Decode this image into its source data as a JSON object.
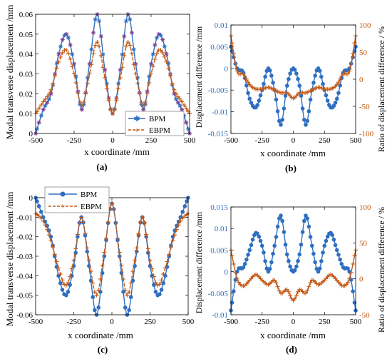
{
  "colors": {
    "bpm": "#2f6fc1",
    "ebpm": "#c35a17",
    "diff": "#2f6fc1",
    "ratio": "#c35a17",
    "green": "#78a845",
    "purple": "#7e3f96"
  },
  "chart_data": [
    {
      "panel_label": "(a)",
      "type": "line",
      "xlabel": "x coordinate /mm",
      "ylabel": "Modal transverse displacement  /mm",
      "xlim": [
        -500,
        500
      ],
      "ylim": [
        0,
        0.06
      ],
      "xticks": [
        -500,
        -250,
        0,
        250,
        500
      ],
      "yticks": [
        0,
        0.01,
        0.02,
        0.03,
        0.04,
        0.05,
        0.06
      ],
      "ytick_labels": [
        "0",
        "0.01",
        "0.02",
        "0.03",
        "0.04",
        "0.05",
        "0.06"
      ],
      "legend": "bottom-right",
      "series": [
        {
          "name": "BPM",
          "x": [
            -500,
            -450,
            -400,
            -350,
            -300,
            -250,
            -200,
            -150,
            -100,
            -50,
            0,
            50,
            100,
            150,
            200,
            250,
            300,
            350,
            400,
            450,
            500
          ],
          "y": [
            0,
            0.012,
            0.02,
            0.04,
            0.05,
            0.035,
            0.012,
            0.035,
            0.06,
            0.032,
            0.01,
            0.032,
            0.06,
            0.035,
            0.012,
            0.035,
            0.05,
            0.04,
            0.02,
            0.012,
            0
          ]
        },
        {
          "name": "EBPM",
          "x": [
            -500,
            -450,
            -400,
            -350,
            -300,
            -250,
            -200,
            -150,
            -100,
            -50,
            0,
            50,
            100,
            150,
            200,
            250,
            300,
            350,
            400,
            450,
            500
          ],
          "y": [
            0.01,
            0.016,
            0.022,
            0.036,
            0.042,
            0.03,
            0.014,
            0.03,
            0.046,
            0.028,
            0.01,
            0.028,
            0.046,
            0.03,
            0.014,
            0.03,
            0.042,
            0.036,
            0.022,
            0.016,
            0.01
          ]
        }
      ]
    },
    {
      "panel_label": "(b)",
      "type": "line",
      "xlabel": "x coordinate /mm",
      "ylabel": "Displacement difference /mm",
      "ylabel_right": "Ratio of displacement difference / %",
      "xlim": [
        -500,
        500
      ],
      "ylim": [
        -0.015,
        0.01
      ],
      "ylim_right": [
        -100,
        100
      ],
      "xticks": [
        -500,
        -250,
        0,
        250,
        500
      ],
      "yticks": [
        -0.015,
        -0.01,
        -0.005,
        0,
        0.005,
        0.01
      ],
      "ytick_labels": [
        "-0.015",
        "-0.01",
        "-0.005",
        "0",
        "0.005",
        "0.01"
      ],
      "yticks_right": [
        -100,
        -50,
        0,
        50,
        100
      ],
      "series": [
        {
          "x": [
            -500,
            -450,
            -400,
            -350,
            -300,
            -250,
            -200,
            -150,
            -100,
            -50,
            0,
            50,
            100,
            150,
            200,
            250,
            300,
            350,
            400,
            450,
            500
          ],
          "y": [
            0.005,
            0.0,
            -0.001,
            -0.007,
            -0.009,
            -0.005,
            0.0,
            -0.005,
            -0.013,
            -0.004,
            0.0,
            -0.004,
            -0.013,
            -0.005,
            0.0,
            -0.005,
            -0.009,
            -0.007,
            -0.001,
            0.0,
            0.005
          ]
        },
        {
          "axis": "right",
          "x": [
            -500,
            -450,
            -400,
            -350,
            -300,
            -250,
            -200,
            -150,
            -100,
            -50,
            0,
            50,
            100,
            150,
            200,
            250,
            300,
            350,
            400,
            450,
            500
          ],
          "y": [
            80,
            15,
            10,
            -10,
            -18,
            -18,
            -15,
            -20,
            -25,
            -25,
            -35,
            -25,
            -25,
            -20,
            -15,
            -18,
            -18,
            -10,
            10,
            15,
            80
          ]
        }
      ]
    },
    {
      "panel_label": "(c)",
      "type": "line",
      "xlabel": "x coordinate /mm",
      "ylabel": "Modal transverse displacement  /mm",
      "xlim": [
        -500,
        500
      ],
      "ylim": [
        -0.06,
        0
      ],
      "xticks": [
        -500,
        -250,
        0,
        250,
        500
      ],
      "yticks": [
        -0.06,
        -0.05,
        -0.04,
        -0.03,
        -0.02,
        -0.01,
        0
      ],
      "ytick_labels": [
        "-0.06",
        "-0.05",
        "-0.04",
        "-0.03",
        "-0.02",
        "-0.01",
        "0"
      ],
      "legend": "top-left",
      "series": [
        {
          "name": "BPM",
          "x": [
            -500,
            -450,
            -400,
            -350,
            -300,
            -250,
            -200,
            -150,
            -100,
            -50,
            0,
            50,
            100,
            150,
            200,
            250,
            300,
            350,
            400,
            450,
            500
          ],
          "y": [
            0,
            -0.01,
            -0.02,
            -0.04,
            -0.05,
            -0.035,
            -0.01,
            -0.035,
            -0.06,
            -0.03,
            -0.003,
            -0.03,
            -0.06,
            -0.035,
            -0.01,
            -0.035,
            -0.05,
            -0.04,
            -0.02,
            -0.01,
            0
          ]
        },
        {
          "name": "EBPM",
          "x": [
            -500,
            -450,
            -400,
            -350,
            -300,
            -250,
            -200,
            -150,
            -100,
            -50,
            0,
            50,
            100,
            150,
            200,
            250,
            300,
            350,
            400,
            450,
            500
          ],
          "y": [
            -0.008,
            -0.012,
            -0.022,
            -0.036,
            -0.045,
            -0.032,
            -0.01,
            -0.032,
            -0.05,
            -0.028,
            -0.003,
            -0.028,
            -0.05,
            -0.032,
            -0.01,
            -0.032,
            -0.045,
            -0.036,
            -0.022,
            -0.012,
            -0.008
          ]
        }
      ]
    },
    {
      "panel_label": "(d)",
      "type": "line",
      "xlabel": "x coordinate /mm",
      "ylabel": "Displacement difference /mm",
      "ylabel_right": "Ratio of displacement difference / %",
      "xlim": [
        -500,
        500
      ],
      "ylim": [
        -0.01,
        0.015
      ],
      "ylim_right": [
        -50,
        100
      ],
      "xticks": [
        -500,
        -250,
        0,
        250,
        500
      ],
      "yticks": [
        -0.01,
        -0.005,
        0,
        0.005,
        0.01,
        0.015
      ],
      "ytick_labels": [
        "-0.01",
        "-0.005",
        "0",
        "0.005",
        "0.01",
        "0.015"
      ],
      "yticks_right": [
        -50,
        0,
        50,
        100
      ],
      "series": [
        {
          "x": [
            -500,
            -450,
            -400,
            -350,
            -300,
            -250,
            -200,
            -150,
            -100,
            -50,
            0,
            50,
            100,
            150,
            200,
            250,
            300,
            350,
            400,
            450,
            500
          ],
          "y": [
            -0.009,
            0.0,
            0.001,
            0.005,
            0.009,
            0.006,
            0.0,
            0.006,
            0.013,
            0.004,
            0.0,
            0.004,
            0.013,
            0.006,
            0.0,
            0.006,
            0.009,
            0.005,
            0.001,
            0.0,
            -0.009
          ]
        },
        {
          "axis": "right",
          "x": [
            -500,
            -450,
            -400,
            -350,
            -300,
            -250,
            -200,
            -150,
            -100,
            -50,
            0,
            50,
            100,
            150,
            200,
            250,
            300,
            350,
            400,
            450,
            500
          ],
          "y": [
            40,
            0,
            -10,
            -2,
            6,
            -2,
            -8,
            -2,
            -20,
            -15,
            -30,
            -15,
            -20,
            -2,
            -8,
            -2,
            6,
            -2,
            -10,
            0,
            40
          ]
        }
      ]
    }
  ]
}
